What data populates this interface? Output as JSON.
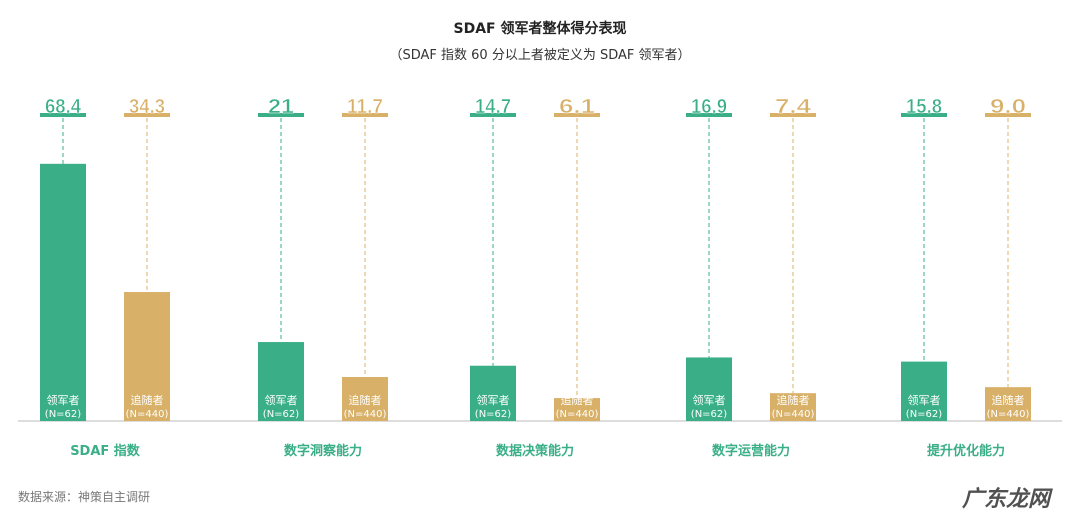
{
  "chart_data": {
    "type": "bar",
    "title": "SDAF 领军者整体得分表现",
    "subtitle": "（SDAF 指数 60 分以上者被定义为 SDAF 领军者）",
    "categories": [
      "SDAF 指数",
      "数字洞察能力",
      "数据决策能力",
      "数字运营能力",
      "提升优化能力"
    ],
    "series": [
      {
        "name": "领军者",
        "sample": "(N=62)",
        "color": "#3aaf87",
        "values": [
          68.4,
          21,
          14.7,
          16.9,
          15.8
        ],
        "labels": [
          "68.4",
          "21",
          "14.7",
          "16.9",
          "15.8"
        ]
      },
      {
        "name": "追随者",
        "sample": "(N=440)",
        "color": "#d8b067",
        "values": [
          34.3,
          11.7,
          6.1,
          7.4,
          9.0
        ],
        "labels": [
          "34.3",
          "11.7",
          "6.1",
          "7.4",
          "9.0"
        ]
      }
    ],
    "category_color": "#3aaf87",
    "grid": false,
    "axes_visible": false
  },
  "source": "数据来源：神策自主调研",
  "watermark": "广东龙网"
}
